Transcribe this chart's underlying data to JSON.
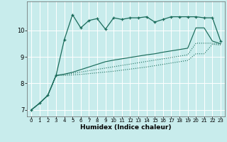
{
  "xlabel": "Humidex (Indice chaleur)",
  "background_color": "#c8ecec",
  "line_color": "#1a6b5a",
  "grid_color": "#ffffff",
  "xlim": [
    -0.5,
    23.5
  ],
  "ylim": [
    6.75,
    11.1
  ],
  "yticks": [
    7,
    8,
    9,
    10
  ],
  "xticks": [
    0,
    1,
    2,
    3,
    4,
    5,
    6,
    7,
    8,
    9,
    10,
    11,
    12,
    13,
    14,
    15,
    16,
    17,
    18,
    19,
    20,
    21,
    22,
    23
  ],
  "series1_x": [
    0,
    1,
    2,
    3,
    4,
    5,
    6,
    7,
    8,
    9,
    10,
    11,
    12,
    13,
    14,
    15,
    16,
    17,
    18,
    19,
    20,
    21,
    22,
    23
  ],
  "series1_y": [
    7.0,
    7.25,
    7.55,
    8.3,
    9.65,
    10.6,
    10.1,
    10.38,
    10.45,
    10.05,
    10.48,
    10.42,
    10.48,
    10.48,
    10.52,
    10.32,
    10.42,
    10.52,
    10.52,
    10.52,
    10.52,
    10.48,
    10.48,
    9.6
  ],
  "series2_x": [
    0,
    1,
    2,
    3,
    4,
    5,
    6,
    7,
    8,
    9,
    10,
    11,
    12,
    13,
    14,
    15,
    16,
    17,
    18,
    19,
    20,
    21,
    22,
    23
  ],
  "series2_y": [
    7.0,
    7.25,
    7.55,
    8.3,
    8.35,
    8.42,
    8.52,
    8.62,
    8.72,
    8.82,
    8.88,
    8.93,
    8.98,
    9.03,
    9.08,
    9.12,
    9.18,
    9.23,
    9.28,
    9.33,
    10.1,
    10.1,
    9.6,
    9.5
  ],
  "series3_x": [
    0,
    1,
    2,
    3,
    4,
    5,
    6,
    7,
    8,
    9,
    10,
    11,
    12,
    13,
    14,
    15,
    16,
    17,
    18,
    19,
    20,
    21,
    22,
    23
  ],
  "series3_y": [
    7.0,
    7.25,
    7.55,
    8.3,
    8.33,
    8.38,
    8.43,
    8.48,
    8.53,
    8.58,
    8.63,
    8.68,
    8.73,
    8.78,
    8.83,
    8.88,
    8.93,
    8.98,
    9.03,
    9.08,
    9.52,
    9.52,
    9.52,
    9.48
  ],
  "series4_x": [
    0,
    1,
    2,
    3,
    4,
    5,
    6,
    7,
    8,
    9,
    10,
    11,
    12,
    13,
    14,
    15,
    16,
    17,
    18,
    19,
    20,
    21,
    22,
    23
  ],
  "series4_y": [
    7.0,
    7.25,
    7.55,
    8.3,
    8.3,
    8.32,
    8.34,
    8.37,
    8.4,
    8.43,
    8.46,
    8.5,
    8.54,
    8.58,
    8.62,
    8.67,
    8.72,
    8.77,
    8.82,
    8.87,
    9.12,
    9.12,
    9.48,
    9.45
  ]
}
